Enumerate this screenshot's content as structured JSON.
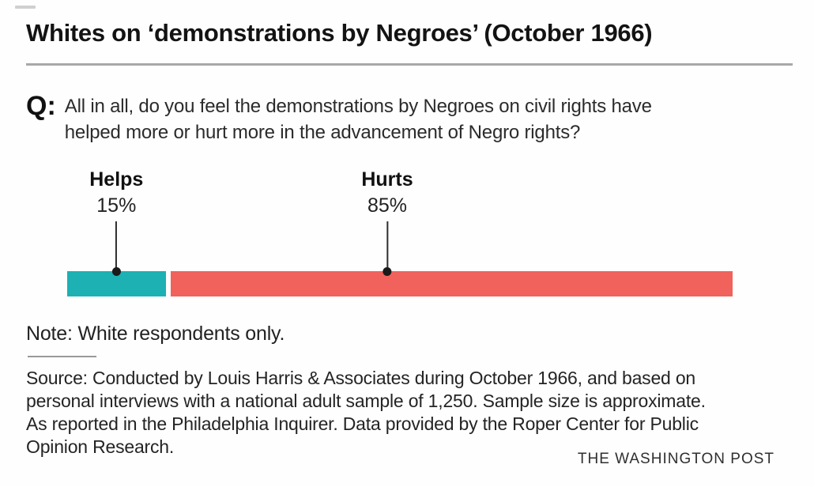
{
  "header": {
    "title": "Whites on ‘demonstrations by Negroes’ (October 1966)"
  },
  "question": {
    "prefix": "Q:",
    "lines": [
      "All in all, do you feel the demonstrations by Negroes on civil rights have",
      "helped more or hurt more in the advancement of Negro rights?"
    ]
  },
  "chart_data": {
    "type": "bar",
    "orientation": "horizontal_stacked",
    "categories": [
      "Helps",
      "Hurts"
    ],
    "values": [
      15,
      85
    ],
    "value_labels": [
      "15%",
      "85%"
    ],
    "units": "%",
    "colors": [
      "#1db1b4",
      "#f0625b"
    ],
    "xlim": [
      0,
      100
    ],
    "grid": false,
    "legend": "none"
  },
  "note": {
    "text": "Note: White respondents only."
  },
  "source": {
    "lines": [
      "Source: Conducted by Louis Harris & Associates during October 1966, and based on",
      "personal interviews with a national adult sample of 1,250. Sample size is approximate.",
      "As reported in the Philadelphia Inquirer. Data provided by the Roper Center for Public",
      "Opinion Research."
    ]
  },
  "credit": {
    "text": "THE WASHINGTON POST"
  }
}
